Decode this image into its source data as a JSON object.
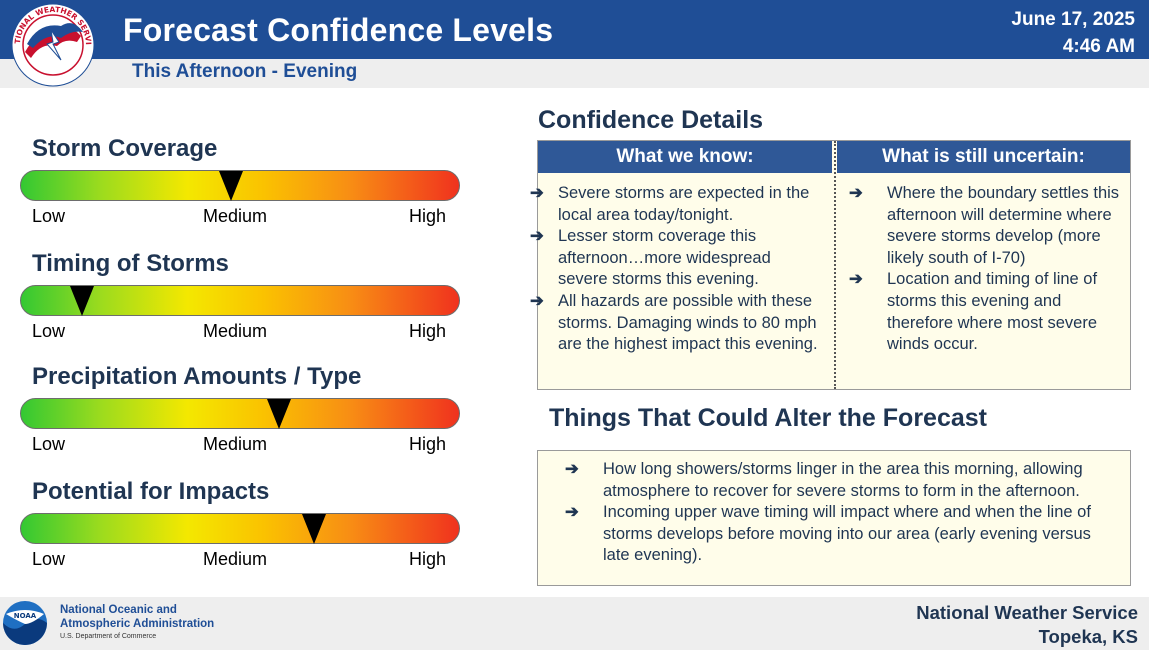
{
  "header": {
    "title": "Forecast Confidence Levels",
    "subtitle": "This Afternoon - Evening",
    "date": "June 17, 2025",
    "time": "4:46 AM",
    "logo_text": "NATIONAL WEATHER SERVICE"
  },
  "meters": [
    {
      "title": "Storm Coverage",
      "level": 0.48,
      "low": "Low",
      "medium": "Medium",
      "high": "High"
    },
    {
      "title": "Timing of Storms",
      "level": 0.14,
      "low": "Low",
      "medium": "Medium",
      "high": "High"
    },
    {
      "title": "Precipitation Amounts / Type",
      "level": 0.59,
      "low": "Low",
      "medium": "Medium",
      "high": "High"
    },
    {
      "title": "Potential for Impacts",
      "level": 0.67,
      "low": "Low",
      "medium": "Medium",
      "high": "High"
    }
  ],
  "details": {
    "title": "Confidence Details",
    "known_header": "What we know:",
    "uncertain_header": "What is still uncertain:",
    "known": [
      "Severe storms are expected in the local area today/tonight.",
      "Lesser storm coverage this afternoon…more widespread severe storms this evening.",
      "All hazards are possible with these storms. Damaging winds to 80 mph are the highest impact this evening."
    ],
    "uncertain": [
      "Where the boundary settles this afternoon will determine where severe storms develop (more likely south of I-70)",
      "Location and timing of line of storms this evening and therefore where most severe winds occur."
    ]
  },
  "alter": {
    "title": "Things That Could Alter the Forecast",
    "items": [
      "How long showers/storms linger in the area this morning, allowing atmosphere to recover for severe storms to form in the afternoon.",
      "Incoming upper wave timing will impact where and when the line of storms develops before moving into our area (early evening versus late evening)."
    ]
  },
  "bullet_symbol": "➔",
  "footer": {
    "noaa_line1": "National Oceanic and",
    "noaa_line2": "Atmospheric Administration",
    "noaa_dept": "U.S. Department of Commerce",
    "noaa_logo_text": "NOAA",
    "office_line1": "National Weather Service",
    "office_line2": "Topeka, KS"
  },
  "colors": {
    "header_blue": "#1f4e96",
    "column_header_blue": "#2f5897",
    "text_navy": "#1f3552",
    "box_fill": "#fffdea",
    "meter_green": "#33c833",
    "meter_yellow": "#f4e800",
    "meter_red": "#f0321e"
  }
}
